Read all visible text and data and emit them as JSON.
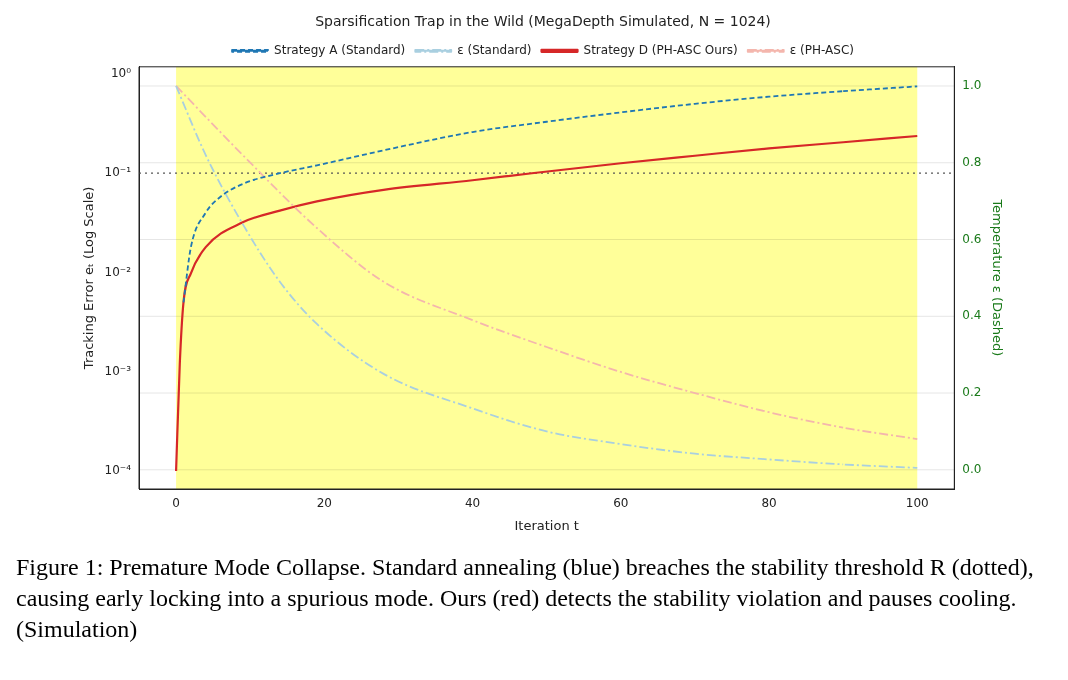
{
  "chart_data": {
    "type": "line",
    "title": "Sparsification Trap in the Wild (MegaDepth Simulated, N = 1024)",
    "xlabel": "Iteration t",
    "ylabel": "Tracking Error eₜ (Log Scale)",
    "y2label": "Temperature ε (Dashed)",
    "series": [
      {
        "name": "Strategy A (Standard)",
        "color": "#1f77b4",
        "line_style": "dashed",
        "x": [
          1,
          2,
          4,
          6,
          9,
          14,
          19,
          28,
          40,
          50,
          60,
          70,
          80,
          90,
          100
        ],
        "values": [
          0.005,
          0.018,
          0.04,
          0.058,
          0.078,
          0.1,
          0.12,
          0.17,
          0.26,
          0.33,
          0.41,
          0.5,
          0.59,
          0.67,
          0.75
        ]
      },
      {
        "name": "ε (Standard)",
        "color": "#a9cfe0",
        "line_style": "dashdot",
        "axis": "y2",
        "x": [
          0,
          4,
          9,
          14,
          19,
          28,
          40,
          50,
          60,
          70,
          80,
          90,
          100
        ],
        "values": [
          1.0,
          0.82,
          0.64,
          0.49,
          0.38,
          0.25,
          0.16,
          0.1,
          0.067,
          0.042,
          0.027,
          0.014,
          0.005
        ]
      },
      {
        "name": "Strategy D (PH-ASC Ours)",
        "color": "#d62728",
        "line_style": "solid",
        "x": [
          0,
          0.5,
          1,
          2,
          4,
          9,
          14,
          19,
          28,
          40,
          48,
          60,
          70,
          80,
          90,
          100
        ],
        "values": [
          0.0001,
          0.0012,
          0.005,
          0.0098,
          0.018,
          0.032,
          0.042,
          0.052,
          0.068,
          0.085,
          0.1,
          0.126,
          0.15,
          0.178,
          0.205,
          0.237
        ]
      },
      {
        "name": "ε (PH-ASC)",
        "color": "#f4b6ad",
        "line_style": "dashdot",
        "axis": "y2",
        "x": [
          0,
          9,
          19,
          28,
          40,
          50,
          60,
          70,
          80,
          90,
          100
        ],
        "values": [
          1.0,
          0.82,
          0.63,
          0.49,
          0.39,
          0.32,
          0.255,
          0.2,
          0.15,
          0.11,
          0.08
        ]
      }
    ],
    "xlim": [
      -5,
      105
    ],
    "xticks": [
      0,
      20,
      40,
      60,
      80,
      100
    ],
    "ylim": [
      6.6e-05,
      1.18
    ],
    "yticks": [
      {
        "value": 0.0001,
        "label": "10⁻⁴"
      },
      {
        "value": 0.001,
        "label": "10⁻³"
      },
      {
        "value": 0.01,
        "label": "10⁻²"
      },
      {
        "value": 0.1,
        "label": "10⁻¹"
      },
      {
        "value": 1,
        "label": "10⁰"
      }
    ],
    "y2lim": [
      -0.05,
      1.05
    ],
    "y2ticks": [
      {
        "value": 0,
        "label": "0.0"
      },
      0.2,
      0.4,
      0.6,
      0.8,
      {
        "value": 1,
        "label": "1.0"
      }
    ],
    "log": "y",
    "grid": "y",
    "legend": "top",
    "marker": "none",
    "ref_lines": [
      {
        "axis": "y",
        "value": 0.1,
        "color": "#555555",
        "line_style": "dotted"
      }
    ],
    "bands": [
      {
        "axis": "x",
        "from": 0,
        "to": 100,
        "color": "#ffff99"
      }
    ],
    "annotations": [
      "Figure 1: Premature Mode Collapse. Standard annealing (blue) breaches the stability threshold R (dotted), causing early locking into a spurious mode. Ours (red) detects the stability violation and pauses cooling. (Simulation)"
    ]
  }
}
